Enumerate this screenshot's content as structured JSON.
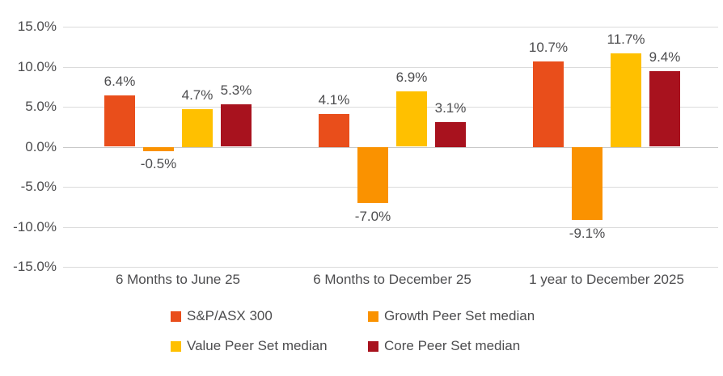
{
  "chart_data": {
    "type": "bar",
    "title": "",
    "xlabel": "",
    "ylabel": "",
    "categories": [
      "6 Months to June 25",
      "6 Months to December 25",
      "1 year to December 2025"
    ],
    "series": [
      {
        "name": "S&P/ASX 300",
        "color": "#E94E1B",
        "values": [
          6.4,
          4.1,
          10.7
        ],
        "labels": [
          "6.4%",
          "4.1%",
          "10.7%"
        ]
      },
      {
        "name": "Growth Peer Set median",
        "color": "#FA9200",
        "values": [
          -0.5,
          -7.0,
          -9.1
        ],
        "labels": [
          "-0.5%",
          "-7.0%",
          "-9.1%"
        ]
      },
      {
        "name": "Value Peer Set median",
        "color": "#FFC000",
        "values": [
          4.7,
          6.9,
          11.7
        ],
        "labels": [
          "4.7%",
          "6.9%",
          "11.7%"
        ]
      },
      {
        "name": "Core Peer Set median",
        "color": "#A8121E",
        "values": [
          5.3,
          3.1,
          9.4
        ],
        "labels": [
          "5.3%",
          "3.1%",
          "9.4%"
        ]
      }
    ],
    "ylim": [
      -15,
      15
    ],
    "ytick_step": 5,
    "yticks": [
      15,
      10,
      5,
      0,
      -5,
      -10,
      -15
    ],
    "ytick_labels": [
      "15.0%",
      "10.0%",
      "5.0%",
      "0.0%",
      "-5.0%",
      "-10.0%",
      "-15.0%"
    ],
    "grid": true,
    "legend_position": "bottom",
    "legend_order": [
      [
        "S&P/ASX 300",
        "Growth Peer Set median"
      ],
      [
        "Value Peer Set median",
        "Core Peer Set median"
      ]
    ]
  },
  "colors": {
    "text": "#4D4D4F",
    "gridline": "#DBDBDB",
    "zero_line": "#C8C8C8",
    "background": "#FFFFFF"
  }
}
